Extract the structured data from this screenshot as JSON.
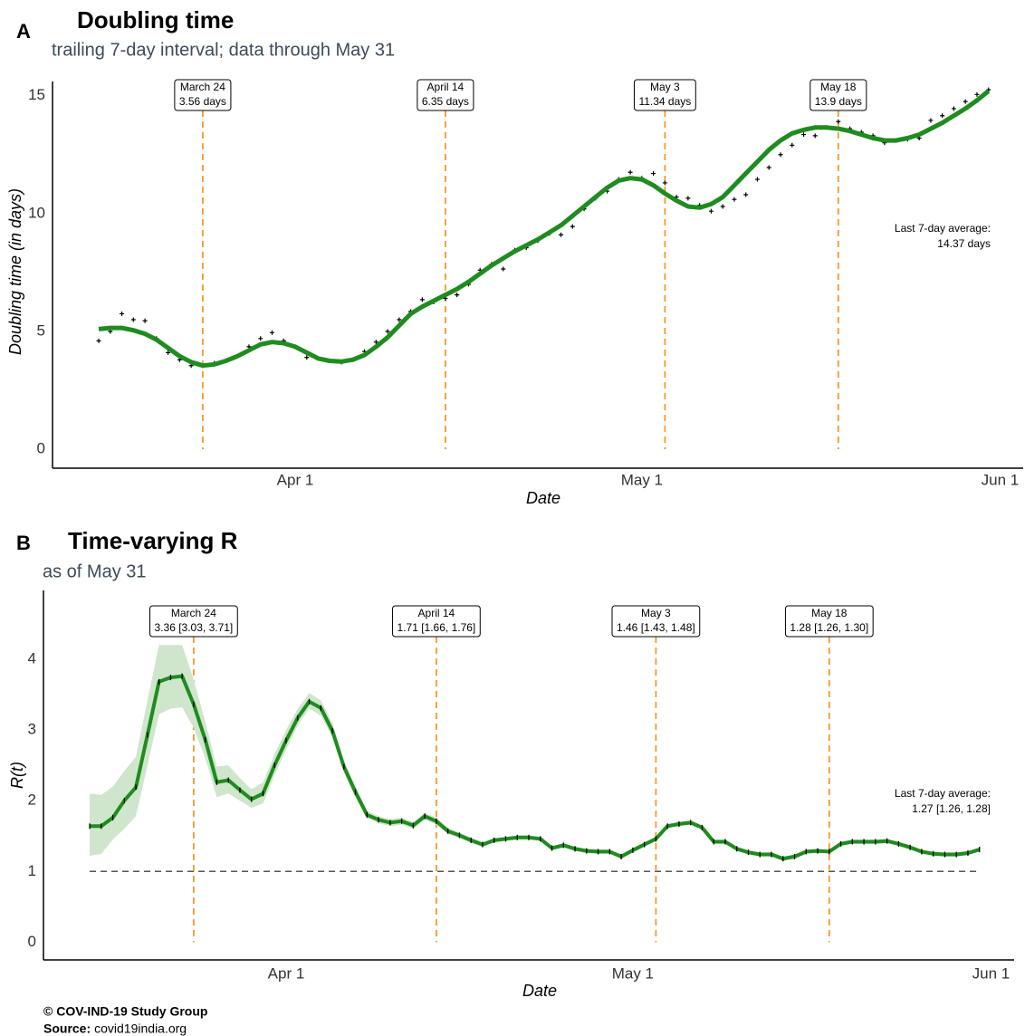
{
  "chart_data": [
    {
      "type": "line",
      "panel": "A",
      "title": "Doubling time",
      "subtitle": "trailing 7-day interval; data through May 31",
      "xlabel": "Date",
      "ylabel": "Doubling time (in days)",
      "x": [
        "Mar 15",
        "Mar 16",
        "Mar 17",
        "Mar 18",
        "Mar 19",
        "Mar 20",
        "Mar 21",
        "Mar 22",
        "Mar 23",
        "Mar 24",
        "Mar 25",
        "Mar 26",
        "Mar 27",
        "Mar 28",
        "Mar 29",
        "Mar 30",
        "Mar 31",
        "Apr 1",
        "Apr 2",
        "Apr 3",
        "Apr 4",
        "Apr 5",
        "Apr 6",
        "Apr 7",
        "Apr 8",
        "Apr 9",
        "Apr 10",
        "Apr 11",
        "Apr 12",
        "Apr 13",
        "Apr 14",
        "Apr 15",
        "Apr 16",
        "Apr 17",
        "Apr 18",
        "Apr 19",
        "Apr 20",
        "Apr 21",
        "Apr 22",
        "Apr 23",
        "Apr 24",
        "Apr 25",
        "Apr 26",
        "Apr 27",
        "Apr 28",
        "Apr 29",
        "Apr 30",
        "May 1",
        "May 2",
        "May 3",
        "May 4",
        "May 5",
        "May 6",
        "May 7",
        "May 8",
        "May 9",
        "May 10",
        "May 11",
        "May 12",
        "May 13",
        "May 14",
        "May 15",
        "May 16",
        "May 17",
        "May 18",
        "May 19",
        "May 20",
        "May 21",
        "May 22",
        "May 23",
        "May 24",
        "May 25",
        "May 26",
        "May 27",
        "May 28",
        "May 29",
        "May 30",
        "May 31"
      ],
      "series": [
        {
          "style": "points",
          "color": "#000000",
          "values": [
            4.6,
            5.0,
            5.75,
            5.5,
            5.45,
            4.7,
            4.1,
            3.8,
            3.55,
            3.55,
            3.65,
            3.75,
            3.95,
            4.35,
            4.7,
            4.95,
            4.6,
            4.35,
            3.9,
            3.85,
            3.75,
            3.7,
            3.8,
            4.15,
            4.55,
            5.0,
            5.5,
            5.85,
            6.35,
            6.25,
            6.4,
            6.55,
            7.0,
            7.6,
            7.85,
            7.65,
            8.45,
            8.55,
            8.85,
            9.15,
            9.1,
            9.45,
            10.2,
            10.65,
            10.95,
            11.45,
            11.75,
            11.5,
            11.7,
            11.3,
            10.7,
            10.65,
            10.35,
            10.1,
            10.3,
            10.6,
            10.8,
            11.45,
            11.95,
            12.5,
            12.9,
            13.35,
            13.3,
            13.65,
            13.9,
            13.6,
            13.45,
            13.3,
            13.0,
            13.1,
            13.15,
            13.2,
            13.95,
            14.15,
            14.45,
            14.75,
            15.05,
            15.25
          ]
        },
        {
          "style": "line",
          "color": "#1e8c1e",
          "values": [
            5.1,
            5.15,
            5.15,
            5.05,
            4.9,
            4.65,
            4.3,
            3.95,
            3.7,
            3.55,
            3.6,
            3.75,
            3.95,
            4.2,
            4.45,
            4.55,
            4.5,
            4.35,
            4.1,
            3.85,
            3.75,
            3.72,
            3.8,
            4.0,
            4.35,
            4.75,
            5.25,
            5.75,
            6.05,
            6.3,
            6.55,
            6.8,
            7.1,
            7.45,
            7.8,
            8.1,
            8.4,
            8.65,
            8.9,
            9.2,
            9.5,
            9.9,
            10.3,
            10.7,
            11.1,
            11.4,
            11.5,
            11.45,
            11.2,
            10.85,
            10.55,
            10.3,
            10.25,
            10.4,
            10.7,
            11.2,
            11.7,
            12.2,
            12.7,
            13.1,
            13.4,
            13.55,
            13.65,
            13.65,
            13.6,
            13.5,
            13.35,
            13.2,
            13.1,
            13.1,
            13.2,
            13.35,
            13.6,
            13.85,
            14.15,
            14.45,
            14.8,
            15.2
          ]
        }
      ],
      "xlim": [
        "Mar 11",
        "Jun 3"
      ],
      "xticks": [
        "Apr 1",
        "May 1",
        "Jun 1"
      ],
      "ylim": [
        -0.8,
        15.6
      ],
      "yticks": [
        0,
        5,
        10,
        15
      ],
      "grid": false,
      "annotations": [
        {
          "x": "Mar 24",
          "label": "March 24",
          "text": "3.56 days"
        },
        {
          "x": "Apr 14",
          "label": "April 14",
          "text": "6.35 days"
        },
        {
          "x": "May 3",
          "label": "May 3",
          "text": "11.34 days"
        },
        {
          "x": "May 18",
          "label": "May 18",
          "text": "13.9 days"
        }
      ],
      "note": [
        "Last 7-day average:",
        "14.37 days"
      ]
    },
    {
      "type": "line",
      "panel": "B",
      "title": "Time-varying R",
      "subtitle": "as of May 31",
      "xlabel": "Date",
      "ylabel": "R(t)",
      "x": [
        "Mar 15",
        "Mar 16",
        "Mar 17",
        "Mar 18",
        "Mar 19",
        "Mar 20",
        "Mar 21",
        "Mar 22",
        "Mar 23",
        "Mar 24",
        "Mar 25",
        "Mar 26",
        "Mar 27",
        "Mar 28",
        "Mar 29",
        "Mar 30",
        "Mar 31",
        "Apr 1",
        "Apr 2",
        "Apr 3",
        "Apr 4",
        "Apr 5",
        "Apr 6",
        "Apr 7",
        "Apr 8",
        "Apr 9",
        "Apr 10",
        "Apr 11",
        "Apr 12",
        "Apr 13",
        "Apr 14",
        "Apr 15",
        "Apr 16",
        "Apr 17",
        "Apr 18",
        "Apr 19",
        "Apr 20",
        "Apr 21",
        "Apr 22",
        "Apr 23",
        "Apr 24",
        "Apr 25",
        "Apr 26",
        "Apr 27",
        "Apr 28",
        "Apr 29",
        "Apr 30",
        "May 1",
        "May 2",
        "May 3",
        "May 4",
        "May 5",
        "May 6",
        "May 7",
        "May 8",
        "May 9",
        "May 10",
        "May 11",
        "May 12",
        "May 13",
        "May 14",
        "May 15",
        "May 16",
        "May 17",
        "May 18",
        "May 19",
        "May 20",
        "May 21",
        "May 22",
        "May 23",
        "May 24",
        "May 25",
        "May 26",
        "May 27",
        "May 28",
        "May 29",
        "May 30",
        "May 31"
      ],
      "series": [
        {
          "style": "line",
          "color": "#1e8c1e",
          "band_color": "#cfe6cc",
          "marker_color": "#000000",
          "values": [
            1.64,
            1.64,
            1.76,
            2.0,
            2.19,
            2.93,
            3.68,
            3.74,
            3.76,
            3.36,
            2.86,
            2.26,
            2.29,
            2.15,
            2.02,
            2.1,
            2.5,
            2.85,
            3.17,
            3.4,
            3.31,
            2.99,
            2.48,
            2.12,
            1.8,
            1.73,
            1.69,
            1.71,
            1.65,
            1.78,
            1.71,
            1.57,
            1.51,
            1.44,
            1.38,
            1.44,
            1.46,
            1.48,
            1.48,
            1.46,
            1.33,
            1.37,
            1.32,
            1.29,
            1.28,
            1.28,
            1.21,
            1.3,
            1.38,
            1.46,
            1.64,
            1.67,
            1.69,
            1.62,
            1.42,
            1.42,
            1.32,
            1.27,
            1.24,
            1.24,
            1.18,
            1.21,
            1.28,
            1.29,
            1.28,
            1.39,
            1.42,
            1.42,
            1.42,
            1.43,
            1.39,
            1.34,
            1.28,
            1.25,
            1.24,
            1.24,
            1.26,
            1.31
          ],
          "lower": [
            1.22,
            1.25,
            1.45,
            1.6,
            1.78,
            2.5,
            3.22,
            3.3,
            3.32,
            3.03,
            2.6,
            2.05,
            2.1,
            2.0,
            1.9,
            1.96,
            2.36,
            2.72,
            3.06,
            3.3,
            3.2,
            2.9,
            2.4,
            2.05,
            1.75,
            1.68,
            1.64,
            1.66,
            1.6,
            1.73,
            1.66,
            1.53,
            1.47,
            1.4,
            1.35,
            1.41,
            1.43,
            1.45,
            1.45,
            1.43,
            1.3,
            1.34,
            1.29,
            1.26,
            1.25,
            1.25,
            1.18,
            1.27,
            1.35,
            1.43,
            1.61,
            1.64,
            1.66,
            1.59,
            1.39,
            1.39,
            1.29,
            1.24,
            1.21,
            1.21,
            1.15,
            1.18,
            1.25,
            1.26,
            1.26,
            1.36,
            1.39,
            1.39,
            1.39,
            1.4,
            1.36,
            1.31,
            1.25,
            1.22,
            1.21,
            1.21,
            1.23,
            1.28
          ],
          "upper": [
            2.1,
            2.08,
            2.2,
            2.42,
            2.62,
            3.42,
            4.2,
            4.2,
            4.2,
            3.71,
            3.12,
            2.48,
            2.5,
            2.32,
            2.16,
            2.26,
            2.66,
            3.0,
            3.3,
            3.52,
            3.42,
            3.1,
            2.56,
            2.2,
            1.86,
            1.78,
            1.74,
            1.76,
            1.7,
            1.83,
            1.76,
            1.61,
            1.55,
            1.48,
            1.41,
            1.47,
            1.49,
            1.51,
            1.51,
            1.49,
            1.36,
            1.4,
            1.35,
            1.32,
            1.31,
            1.31,
            1.24,
            1.33,
            1.41,
            1.48,
            1.67,
            1.7,
            1.72,
            1.65,
            1.45,
            1.45,
            1.35,
            1.3,
            1.27,
            1.27,
            1.21,
            1.24,
            1.31,
            1.32,
            1.3,
            1.42,
            1.45,
            1.45,
            1.45,
            1.46,
            1.42,
            1.37,
            1.31,
            1.28,
            1.27,
            1.27,
            1.29,
            1.34
          ]
        }
      ],
      "hline": 1,
      "xlim": [
        "Mar 11",
        "Jun 3"
      ],
      "xticks": [
        "Apr 1",
        "May 1",
        "Jun 1"
      ],
      "ylim": [
        -0.25,
        4.97
      ],
      "yticks": [
        0,
        1,
        2,
        3,
        4
      ],
      "grid": false,
      "annotations": [
        {
          "x": "Mar 24",
          "label": "March 24",
          "text": "3.36 [3.03, 3.71]"
        },
        {
          "x": "Apr 14",
          "label": "April 14",
          "text": "1.71 [1.66, 1.76]"
        },
        {
          "x": "May 3",
          "label": "May 3",
          "text": "1.46 [1.43, 1.48]"
        },
        {
          "x": "May 18",
          "label": "May 18",
          "text": "1.28 [1.26, 1.30]"
        }
      ],
      "note": [
        "Last 7-day average:",
        "1.27 [1.26, 1.28]"
      ]
    }
  ],
  "footer": {
    "credit": "© COV-IND-19 Study Group",
    "source_label": "Source:",
    "source": "covid19india.org"
  }
}
